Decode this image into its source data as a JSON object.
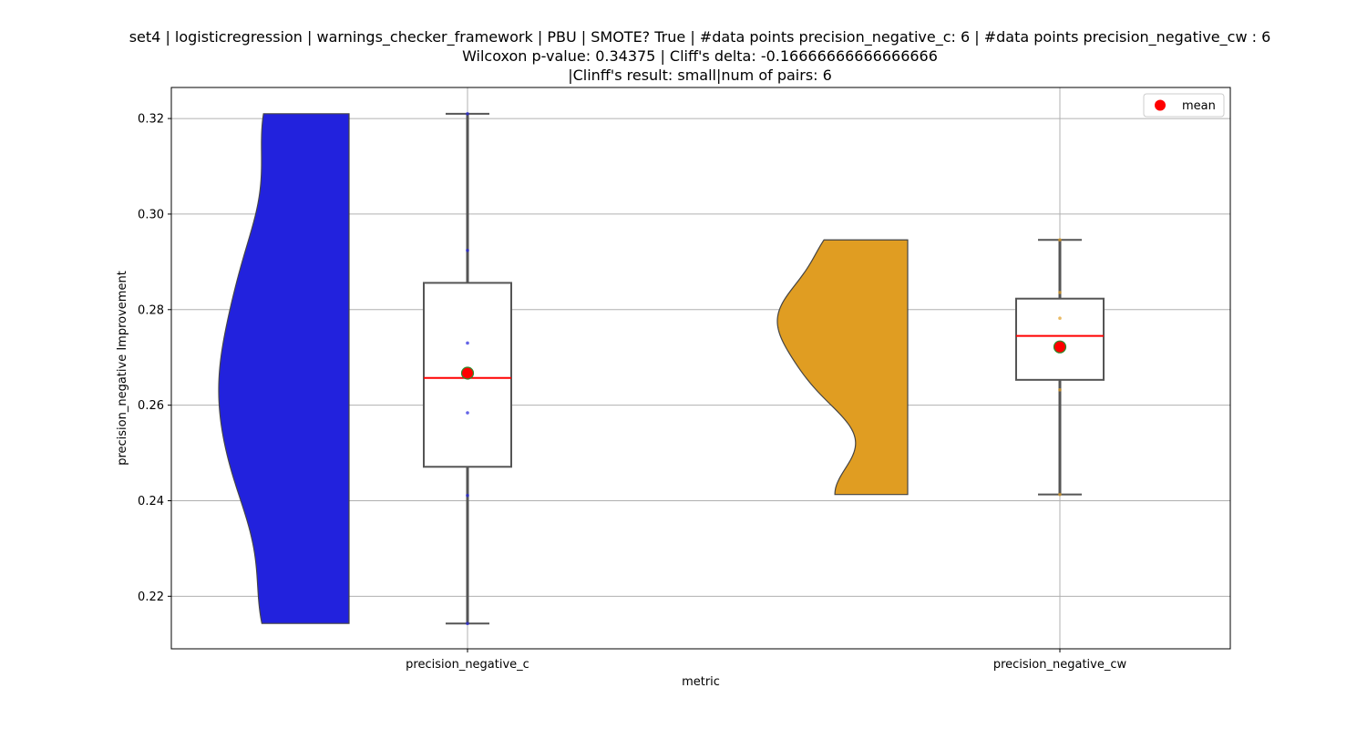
{
  "chart_data": {
    "type": "violin+box",
    "title_lines": [
      "set4 | logisticregression | warnings_checker_framework | PBU | SMOTE? True | #data points precision_negative_c: 6 | #data points precision_negative_cw : 6",
      "Wilcoxon p-value: 0.34375 | Cliff's delta: -0.16666666666666666",
      "|Clinff's result: small|num of pairs: 6"
    ],
    "xlabel": "metric",
    "ylabel": "precision_negative Improvement",
    "ylim": [
      0.209,
      0.3265
    ],
    "yticks": [
      0.22,
      0.24,
      0.26,
      0.28,
      0.3,
      0.32
    ],
    "ytick_labels": [
      "0.22",
      "0.24",
      "0.26",
      "0.28",
      "0.30",
      "0.32"
    ],
    "categories": [
      "precision_negative_c",
      "precision_negative_cw"
    ],
    "grid": true,
    "legend": {
      "placement": "upper-right",
      "entries": [
        {
          "label": "mean",
          "color": "#ff0000"
        }
      ]
    },
    "series": [
      {
        "name": "precision_negative_c",
        "violin_color": "#2222dd",
        "points": [
          0.2143,
          0.2411,
          0.2584,
          0.273,
          0.2924,
          0.321
        ],
        "box": {
          "min": 0.2143,
          "q1": 0.2471,
          "median": 0.2657,
          "q3": 0.2856,
          "max": 0.321
        },
        "mean": 0.2667
      },
      {
        "name": "precision_negative_cw",
        "violin_color": "#e09d22",
        "points": [
          0.2413,
          0.2632,
          0.2782,
          0.2836,
          0.272,
          0.2946
        ],
        "box": {
          "min": 0.2413,
          "q1": 0.2653,
          "median": 0.2745,
          "q3": 0.2823,
          "max": 0.2946
        },
        "mean": 0.2722
      }
    ]
  }
}
